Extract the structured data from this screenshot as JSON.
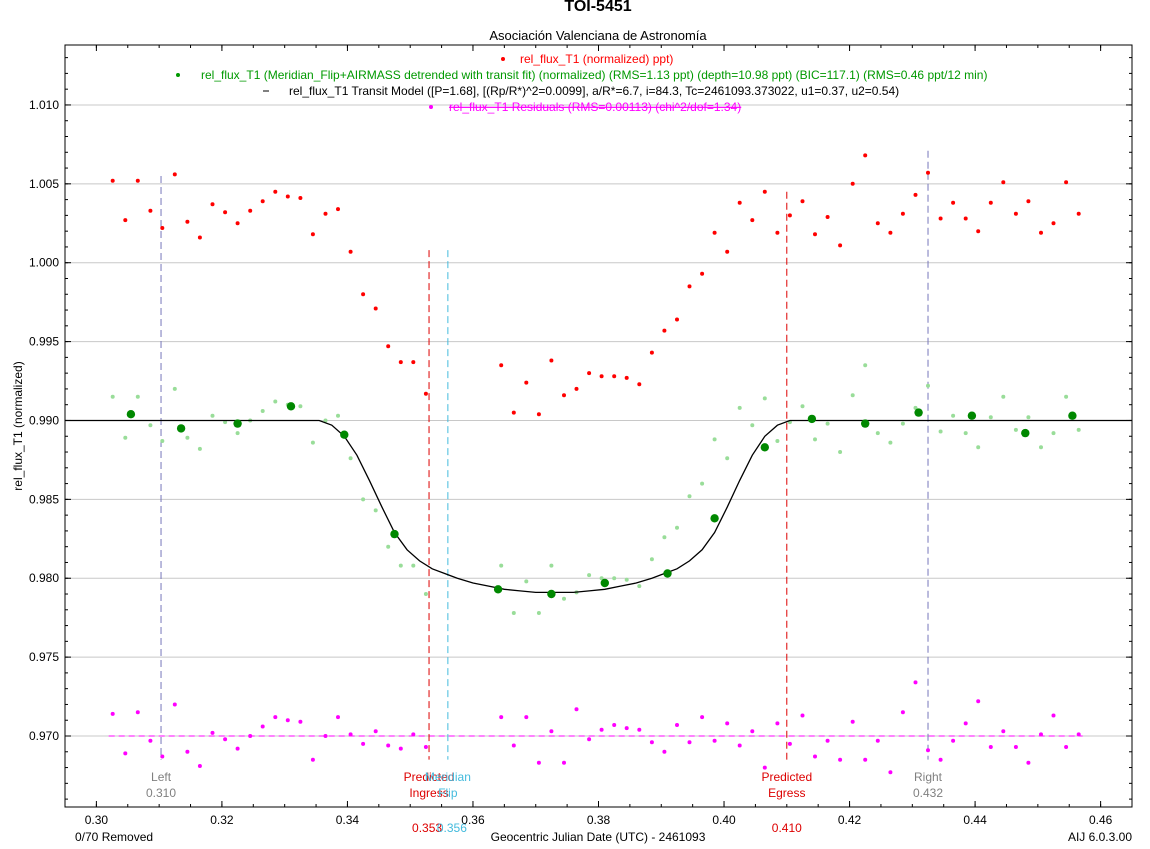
{
  "chart_data": {
    "type": "scatter",
    "title": "TOI-5451",
    "subtitle": "Asociación Valenciana de Astronomía",
    "xlabel": "Geocentric Julian Date (UTC) - 2461093",
    "ylabel": "rel_flux_T1 (normalized)",
    "xlim": [
      0.295,
      0.465
    ],
    "ylim": [
      0.9655,
      1.0138
    ],
    "x_ticks": [
      0.3,
      0.32,
      0.34,
      0.36,
      0.38,
      0.4,
      0.42,
      0.44,
      0.46
    ],
    "x_tick_labels": [
      "0.30",
      "0.32",
      "0.34",
      "0.36",
      "0.38",
      "0.40",
      "0.42",
      "0.44",
      "0.46"
    ],
    "y_ticks": [
      0.97,
      0.975,
      0.98,
      0.985,
      0.99,
      0.995,
      1.0,
      1.005,
      1.01
    ],
    "y_tick_labels": [
      "0.970",
      "0.975",
      "0.980",
      "0.985",
      "0.990",
      "0.995",
      "1.000",
      "1.005",
      "1.010"
    ],
    "grid": "horizontal",
    "legend_position": "top-center",
    "footer_left": "0/70 Removed",
    "footer_right": "AIJ 6.0.3.00",
    "legend": [
      {
        "marker": "•",
        "label": "rel_flux_T1 (normalized) ppt)",
        "color": "#ff0000"
      },
      {
        "marker": "•",
        "label": "rel_flux_T1 (Meridian_Flip+AIRMASS detrended with transit fit) (normalized) (RMS=1.13 ppt) (depth=10.98 ppt) (BIC=117.1) (RMS=0.46 ppt/12 min)",
        "color": "#009900"
      },
      {
        "marker": "–",
        "label": "rel_flux_T1 Transit Model ([P=1.68], [(Rp/R*)^2=0.0099], a/R*=6.7, i=84.3, Tc=2461093.373022, u1=0.37, u2=0.54)",
        "color": "#000000"
      },
      {
        "marker": "•",
        "label": "rel_flux_T1 Residuals (RMS=0.00113) (chi^2/dof=1.34)",
        "color": "#ff00ff"
      }
    ],
    "markers": [
      {
        "name": "left",
        "x": 0.3103,
        "y_range": [
          0.9685,
          1.0055
        ],
        "color": "#7777bb",
        "label1": "Left",
        "label2": "0.310",
        "label_color": "#808080",
        "style": "dash"
      },
      {
        "name": "predicted-ingress",
        "x": 0.353,
        "y_range": [
          0.9685,
          1.0008
        ],
        "color": "#dd0000",
        "label1": "Predicted",
        "label2": "Ingress",
        "value": "0.353",
        "label_color": "#dd0000",
        "style": "dash"
      },
      {
        "name": "meridian-flip",
        "x": 0.356,
        "y_range": [
          0.9685,
          1.0008
        ],
        "color": "#44bbdd",
        "label1": "Meridian",
        "label2": "Flip",
        "value": "0.356",
        "label_color": "#44bbdd",
        "style": "dash"
      },
      {
        "name": "predicted-egress",
        "x": 0.41,
        "y_range": [
          0.9685,
          1.0045
        ],
        "color": "#dd0000",
        "label1": "Predicted",
        "label2": "Egress",
        "value": "0.410",
        "label_color": "#dd0000",
        "style": "dash"
      },
      {
        "name": "right",
        "x": 0.4325,
        "y_range": [
          0.9685,
          1.0071
        ],
        "color": "#7777bb",
        "label1": "Right",
        "label2": "0.432",
        "label_color": "#808080",
        "style": "dash"
      }
    ],
    "series": [
      {
        "name": "rel_flux_T1 (normalized) ppt)",
        "color": "#ff0000",
        "kind": "points",
        "x": [
          0.3026,
          0.3046,
          0.3066,
          0.3086,
          0.3105,
          0.3125,
          0.3145,
          0.3165,
          0.3185,
          0.3205,
          0.3225,
          0.3245,
          0.3265,
          0.3285,
          0.3305,
          0.3325,
          0.3345,
          0.3365,
          0.3385,
          0.3405,
          0.3425,
          0.3445,
          0.3465,
          0.3485,
          0.3505,
          0.3525,
          0.3645,
          0.3665,
          0.3685,
          0.3705,
          0.3725,
          0.3745,
          0.3765,
          0.3785,
          0.3805,
          0.3825,
          0.3845,
          0.3865,
          0.3885,
          0.3905,
          0.3925,
          0.3945,
          0.3965,
          0.3985,
          0.4005,
          0.4025,
          0.4045,
          0.4065,
          0.4085,
          0.4105,
          0.4125,
          0.4145,
          0.4165,
          0.4185,
          0.4205,
          0.4225,
          0.4245,
          0.4265,
          0.4285,
          0.4305,
          0.4325,
          0.4345,
          0.4365,
          0.4385,
          0.4405,
          0.4425,
          0.4445,
          0.4465,
          0.4485,
          0.4505,
          0.4525,
          0.4545,
          0.4565
        ],
        "y": [
          1.0052,
          1.0027,
          1.0052,
          1.0033,
          1.0022,
          1.0056,
          1.0026,
          1.0016,
          1.0037,
          1.0032,
          1.0025,
          1.0033,
          1.0039,
          1.0045,
          1.0042,
          1.0041,
          1.0018,
          1.0031,
          1.0034,
          1.0007,
          0.998,
          0.9971,
          0.9947,
          0.9937,
          0.9937,
          0.9917,
          0.9935,
          0.9905,
          0.9924,
          0.9904,
          0.9938,
          0.9916,
          0.992,
          0.993,
          0.9928,
          0.9928,
          0.9927,
          0.9923,
          0.9943,
          0.9957,
          0.9964,
          0.9985,
          0.9993,
          1.0019,
          1.0007,
          1.0038,
          1.0027,
          1.0045,
          1.0019,
          1.003,
          1.0039,
          1.0018,
          1.0029,
          1.0011,
          1.005,
          1.0068,
          1.0025,
          1.0019,
          1.0031,
          1.0043,
          1.0057,
          1.0028,
          1.0038,
          1.0028,
          1.002,
          1.0038,
          1.0051,
          1.0031,
          1.0039,
          1.0019,
          1.0025,
          1.0051,
          1.0031
        ]
      },
      {
        "name": "rel_flux_T1 (Meridian_Flip+AIRMASS detrended with transit fit) (normalized) (RMS=1.13 ppt) (depth=10.98 ppt) (BIC=117.1) (RMS=0.46 ppt/12 min)",
        "color": "#99dd99",
        "kind": "points",
        "x": [
          0.3026,
          0.3046,
          0.3066,
          0.3086,
          0.3105,
          0.3125,
          0.3145,
          0.3165,
          0.3185,
          0.3205,
          0.3225,
          0.3245,
          0.3265,
          0.3285,
          0.3305,
          0.3325,
          0.3345,
          0.3365,
          0.3385,
          0.3405,
          0.3425,
          0.3445,
          0.3465,
          0.3485,
          0.3505,
          0.3525,
          0.3645,
          0.3665,
          0.3685,
          0.3705,
          0.3725,
          0.3745,
          0.3765,
          0.3785,
          0.3805,
          0.3825,
          0.3845,
          0.3865,
          0.3885,
          0.3905,
          0.3925,
          0.3945,
          0.3965,
          0.3985,
          0.4005,
          0.4025,
          0.4045,
          0.4065,
          0.4085,
          0.4105,
          0.4125,
          0.4145,
          0.4165,
          0.4185,
          0.4205,
          0.4225,
          0.4245,
          0.4265,
          0.4285,
          0.4305,
          0.4325,
          0.4345,
          0.4365,
          0.4385,
          0.4405,
          0.4425,
          0.4445,
          0.4465,
          0.4485,
          0.4505,
          0.4525,
          0.4545,
          0.4565
        ],
        "y": [
          0.9915,
          0.9889,
          0.9915,
          0.9897,
          0.9887,
          0.992,
          0.9889,
          0.9882,
          0.9903,
          0.9899,
          0.9892,
          0.99,
          0.9906,
          0.9912,
          0.991,
          0.9909,
          0.9886,
          0.99,
          0.9903,
          0.9876,
          0.985,
          0.9843,
          0.982,
          0.9808,
          0.9808,
          0.979,
          0.9808,
          0.9778,
          0.9798,
          0.9778,
          0.9808,
          0.9787,
          0.9791,
          0.9802,
          0.98,
          0.98,
          0.9799,
          0.9795,
          0.9812,
          0.9826,
          0.9832,
          0.9852,
          0.986,
          0.9888,
          0.9876,
          0.9908,
          0.9897,
          0.9914,
          0.9887,
          0.9899,
          0.9909,
          0.9888,
          0.9898,
          0.988,
          0.9916,
          0.9935,
          0.9892,
          0.9886,
          0.9898,
          0.9908,
          0.9922,
          0.9893,
          0.9903,
          0.9892,
          0.9883,
          0.9902,
          0.9915,
          0.9894,
          0.9902,
          0.9883,
          0.9892,
          0.9915,
          0.9894
        ]
      },
      {
        "name": "binned",
        "color": "#008800",
        "kind": "points",
        "x": [
          0.3055,
          0.3135,
          0.3225,
          0.331,
          0.3395,
          0.3475,
          0.364,
          0.3725,
          0.381,
          0.391,
          0.3985,
          0.4065,
          0.414,
          0.4225,
          0.431,
          0.4395,
          0.448,
          0.4555
        ],
        "y": [
          0.9904,
          0.9895,
          0.9898,
          0.9909,
          0.9891,
          0.9828,
          0.9793,
          0.979,
          0.9797,
          0.9803,
          0.9838,
          0.9883,
          0.9901,
          0.9898,
          0.9905,
          0.9903,
          0.9892,
          0.9903
        ]
      },
      {
        "name": "rel_flux_T1 Transit Model ([P=1.68], [(Rp/R*)^2=0.0099], a/R*=6.7, i=84.3, Tc=2461093.373022, u1=0.37, u2=0.54)",
        "color": "#000000",
        "kind": "line",
        "x": [
          0.295,
          0.3355,
          0.3375,
          0.3395,
          0.3415,
          0.3435,
          0.3455,
          0.3475,
          0.3495,
          0.3515,
          0.3535,
          0.3555,
          0.3575,
          0.36,
          0.3625,
          0.365,
          0.3675,
          0.37,
          0.373,
          0.376,
          0.3785,
          0.381,
          0.3835,
          0.386,
          0.3885,
          0.3905,
          0.3925,
          0.3945,
          0.3965,
          0.3985,
          0.4005,
          0.4025,
          0.4045,
          0.4065,
          0.4085,
          0.4105,
          0.465
        ],
        "y": [
          0.99,
          0.99,
          0.9897,
          0.989,
          0.9878,
          0.9862,
          0.9845,
          0.9829,
          0.9818,
          0.9811,
          0.9806,
          0.9803,
          0.98,
          0.9797,
          0.9795,
          0.9793,
          0.9792,
          0.9791,
          0.9791,
          0.9791,
          0.9792,
          0.9793,
          0.9795,
          0.9797,
          0.98,
          0.9803,
          0.9806,
          0.9811,
          0.9818,
          0.9829,
          0.9845,
          0.9862,
          0.9878,
          0.989,
          0.9897,
          0.99,
          0.99
        ]
      },
      {
        "name": "rel_flux_T1 Residuals (RMS=0.00113) (chi^2/dof=1.34)",
        "color": "#ff00ff",
        "kind": "points",
        "x": [
          0.3026,
          0.3046,
          0.3066,
          0.3086,
          0.3105,
          0.3125,
          0.3145,
          0.3165,
          0.3185,
          0.3205,
          0.3225,
          0.3245,
          0.3265,
          0.3285,
          0.3305,
          0.3325,
          0.3345,
          0.3365,
          0.3385,
          0.3405,
          0.3425,
          0.3445,
          0.3465,
          0.3485,
          0.3505,
          0.3525,
          0.3645,
          0.3665,
          0.3685,
          0.3705,
          0.3725,
          0.3745,
          0.3765,
          0.3785,
          0.3805,
          0.3825,
          0.3845,
          0.3865,
          0.3885,
          0.3905,
          0.3925,
          0.3945,
          0.3965,
          0.3985,
          0.4005,
          0.4025,
          0.4045,
          0.4065,
          0.4085,
          0.4105,
          0.4125,
          0.4145,
          0.4165,
          0.4185,
          0.4205,
          0.4225,
          0.4245,
          0.4265,
          0.4285,
          0.4305,
          0.4325,
          0.4345,
          0.4365,
          0.4385,
          0.4405,
          0.4425,
          0.4445,
          0.4465,
          0.4485,
          0.4505,
          0.4525,
          0.4545,
          0.4565
        ],
        "y": [
          0.9714,
          0.9689,
          0.9715,
          0.9697,
          0.9687,
          0.972,
          0.969,
          0.9681,
          0.9702,
          0.9698,
          0.9692,
          0.97,
          0.9706,
          0.9712,
          0.971,
          0.9709,
          0.9685,
          0.97,
          0.9712,
          0.9701,
          0.9695,
          0.9703,
          0.9694,
          0.9692,
          0.9701,
          0.9693,
          0.9712,
          0.9694,
          0.9712,
          0.9683,
          0.9703,
          0.9683,
          0.9717,
          0.9698,
          0.9704,
          0.9707,
          0.9705,
          0.9704,
          0.9696,
          0.969,
          0.9707,
          0.9696,
          0.9712,
          0.9697,
          0.9708,
          0.9694,
          0.9703,
          0.968,
          0.9708,
          0.9695,
          0.9713,
          0.9687,
          0.9697,
          0.9685,
          0.9709,
          0.9685,
          0.9697,
          0.9677,
          0.9715,
          0.9734,
          0.9691,
          0.9685,
          0.9697,
          0.9708,
          0.9722,
          0.9693,
          0.9703,
          0.9693,
          0.9683,
          0.9701,
          0.9713,
          0.9693,
          0.9701
        ]
      }
    ]
  }
}
